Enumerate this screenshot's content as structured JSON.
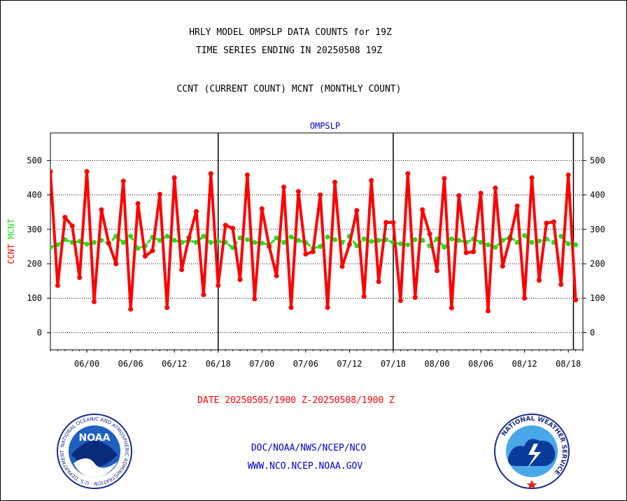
{
  "header": {
    "title_line1": "HRLY MODEL OMPSLP DATA COUNTS for 19Z",
    "title_line2": "TIME SERIES ENDING IN 20250508 19Z",
    "subtitle": "CCNT (CURRENT COUNT) MCNT (MONTHLY COUNT)"
  },
  "footer": {
    "date_range": "DATE 20250505/1900 Z-20250508/1900 Z",
    "org_line": "DOC/NOAA/NWS/NCEP/NCO",
    "url_line": "WWW.NCO.NCEP.NOAA.GOV"
  },
  "logos": {
    "noaa_text": "NOAA",
    "noaa_ring": "NATIONAL OCEANIC AND ATMOSPHERIC ADMINISTRATION · U.S. DEPARTMENT OF COMMERCE",
    "nws_ring": "NATIONAL WEATHER SERVICE"
  },
  "colors": {
    "ccnt": "#ff0000",
    "mcnt": "#22dd22",
    "title_blue": "#0000cc",
    "grid": "#000000"
  },
  "chart_data": {
    "type": "line",
    "title": "OMPSLP",
    "ylabel_parts": [
      {
        "text": "CCNT",
        "color": "#ff0000"
      },
      {
        "text": "MCNT",
        "color": "#22dd22"
      }
    ],
    "ylim": [
      -50,
      580
    ],
    "yticks": [
      0,
      100,
      200,
      300,
      400,
      500
    ],
    "xlim": [
      0,
      73
    ],
    "xticks": [
      {
        "x": 5,
        "label": "06/00"
      },
      {
        "x": 11,
        "label": "06/06"
      },
      {
        "x": 17,
        "label": "06/12"
      },
      {
        "x": 23,
        "label": "06/18"
      },
      {
        "x": 29,
        "label": "07/00"
      },
      {
        "x": 35,
        "label": "07/06"
      },
      {
        "x": 41,
        "label": "07/12"
      },
      {
        "x": 47,
        "label": "07/18"
      },
      {
        "x": 53,
        "label": "08/00"
      },
      {
        "x": 59,
        "label": "08/06"
      },
      {
        "x": 65,
        "label": "08/12"
      },
      {
        "x": 71,
        "label": "08/18"
      }
    ],
    "vlines": [
      23,
      47,
      71.7
    ],
    "grid": "horizontal dotted",
    "series": [
      {
        "name": "CCNT",
        "color": "#ff0000",
        "values": [
          468,
          137,
          335,
          310,
          160,
          468,
          90,
          357,
          260,
          200,
          440,
          68,
          375,
          222,
          238,
          402,
          73,
          450,
          183,
          276,
          352,
          110,
          462,
          137,
          312,
          303,
          154,
          458,
          98,
          360,
          250,
          165,
          423,
          73,
          410,
          228,
          235,
          400,
          73,
          437,
          192,
          256,
          355,
          105,
          442,
          148,
          320,
          320,
          93,
          462,
          102,
          357,
          287,
          180,
          448,
          72,
          398,
          232,
          235,
          405,
          63,
          420,
          193,
          272,
          368,
          100,
          450,
          152,
          318,
          322,
          140,
          458,
          95
        ]
      },
      {
        "name": "MCNT",
        "color": "#22dd22",
        "values": [
          248,
          255,
          270,
          262,
          265,
          257,
          262,
          268,
          258,
          280,
          262,
          280,
          245,
          252,
          277,
          268,
          280,
          268,
          262,
          268,
          262,
          280,
          262,
          265,
          262,
          247,
          275,
          270,
          262,
          260,
          255,
          275,
          262,
          278,
          268,
          262,
          245,
          250,
          278,
          270,
          262,
          280,
          252,
          272,
          265,
          268,
          270,
          262,
          258,
          255,
          270,
          268,
          252,
          272,
          248,
          272,
          268,
          262,
          272,
          262,
          255,
          248,
          268,
          278,
          262,
          282,
          262,
          266,
          272,
          262,
          280,
          258,
          255
        ]
      }
    ]
  }
}
